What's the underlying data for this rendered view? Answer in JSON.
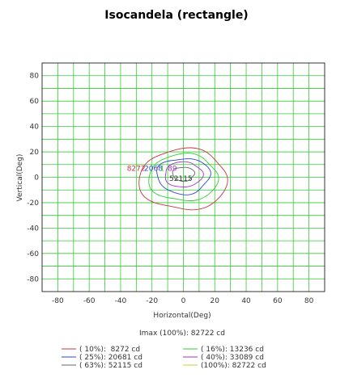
{
  "chart_data": {
    "type": "contour",
    "title": "Isocandela (rectangle)",
    "xlabel": "Horizontal(Deg)",
    "ylabel": "Vertical(Deg)",
    "xlim": [
      -90,
      90
    ],
    "ylim": [
      -90,
      90
    ],
    "x_ticks": [
      -80,
      -60,
      -40,
      -20,
      0,
      20,
      40,
      60,
      80
    ],
    "y_ticks": [
      80,
      60,
      40,
      20,
      0,
      -20,
      -40,
      -60,
      -80
    ],
    "grid": true,
    "grid_color": "#33cc33",
    "imax_text": "Imax (100%): 82722 cd",
    "series": [
      {
        "name": "( 10%):  8272 cd",
        "percent": 10,
        "candela": 8272,
        "color": "#cc3344",
        "rx": 28,
        "ry_top": 22,
        "ry_bottom": 26,
        "cx": 0,
        "cy": 0
      },
      {
        "name": "( 16%): 13236 cd",
        "percent": 16,
        "candela": 13236,
        "color": "#33cc33",
        "rx": 22,
        "ry_top": 17,
        "ry_bottom": 20,
        "cx": 0,
        "cy": 1
      },
      {
        "name": "( 25%): 20681 cd",
        "percent": 25,
        "candela": 20681,
        "color": "#3344cc",
        "rx": 17,
        "ry_top": 13,
        "ry_bottom": 15,
        "cx": 0,
        "cy": 2
      },
      {
        "name": "( 40%): 33089 cd",
        "percent": 40,
        "candela": 33089,
        "color": "#aa33cc",
        "rx": 12,
        "ry_top": 9,
        "ry_bottom": 11,
        "cx": 0,
        "cy": 3
      },
      {
        "name": "( 63%): 52115 cd",
        "percent": 63,
        "candela": 52115,
        "color": "#666666",
        "rx": 7,
        "ry_top": 5,
        "ry_bottom": 6,
        "cx": 0,
        "cy": 3
      },
      {
        "name": "(100%): 82722 cd",
        "percent": 100,
        "candela": 82722,
        "color": "#cccc33",
        "rx": 0,
        "ry_top": 0,
        "ry_bottom": 0,
        "cx": 0,
        "cy": 3
      }
    ],
    "contour_labels": [
      {
        "text": "8272",
        "color": "#cc3344",
        "x": -36,
        "y": 5
      },
      {
        "text": "2068",
        "color": "#3344cc",
        "x": -25,
        "y": 5
      },
      {
        "text": "1",
        "color": "#33cc33",
        "x": -15,
        "y": 5
      },
      {
        "text": "89",
        "color": "#aa33cc",
        "x": -10,
        "y": 5
      },
      {
        "text": "52115",
        "color": "#333333",
        "x": -9,
        "y": -3
      }
    ]
  }
}
